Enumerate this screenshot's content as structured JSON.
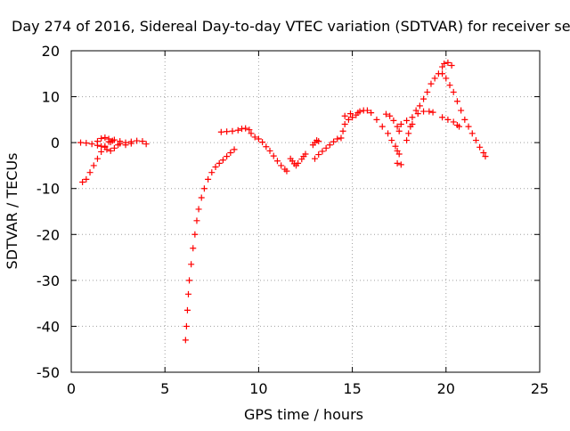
{
  "chart_data": {
    "type": "scatter",
    "title": "Day 274 of 2016, Sidereal Day-to-day VTEC variation (SDTVAR) for receiver se",
    "xlabel": "GPS time / hours",
    "ylabel": "SDTVAR / TECUs",
    "xlim": [
      0,
      25
    ],
    "ylim": [
      -50,
      20
    ],
    "xticks": [
      0,
      5,
      10,
      15,
      20,
      25
    ],
    "yticks": [
      -50,
      -40,
      -30,
      -20,
      -10,
      0,
      10,
      20
    ],
    "grid": true,
    "marker": "plus",
    "color": "#ff0000",
    "series": [
      {
        "values": [
          [
            0.5,
            0.0
          ],
          [
            0.8,
            -0.1
          ],
          [
            1.1,
            -0.3
          ],
          [
            1.4,
            -0.6
          ],
          [
            1.6,
            -0.8
          ],
          [
            1.8,
            -1.0
          ],
          [
            0.6,
            -8.6
          ],
          [
            0.8,
            -8.0
          ],
          [
            1.0,
            -6.5
          ],
          [
            1.2,
            -5.0
          ],
          [
            1.4,
            -3.5
          ],
          [
            1.6,
            -2.0
          ],
          [
            1.8,
            -0.8
          ],
          [
            2.0,
            0.2
          ],
          [
            1.4,
            0.3
          ],
          [
            1.6,
            0.9
          ],
          [
            1.8,
            1.1
          ],
          [
            2.0,
            0.8
          ],
          [
            2.2,
            0.4
          ],
          [
            1.9,
            -1.5
          ],
          [
            2.1,
            -1.8
          ],
          [
            2.3,
            -1.2
          ],
          [
            2.5,
            -0.5
          ],
          [
            2.1,
            0.1
          ],
          [
            2.3,
            0.6
          ],
          [
            2.6,
            0.3
          ],
          [
            2.9,
            0.0
          ],
          [
            3.2,
            0.2
          ],
          [
            3.5,
            0.4
          ],
          [
            3.8,
            0.3
          ],
          [
            4.0,
            -0.3
          ],
          [
            2.6,
            -0.2
          ],
          [
            2.9,
            -0.5
          ],
          [
            3.2,
            -0.2
          ],
          [
            6.1,
            -43.0
          ],
          [
            6.15,
            -40.0
          ],
          [
            6.2,
            -36.5
          ],
          [
            6.25,
            -33.0
          ],
          [
            6.3,
            -30.0
          ],
          [
            6.4,
            -26.5
          ],
          [
            6.5,
            -23.0
          ],
          [
            6.6,
            -20.0
          ],
          [
            6.7,
            -17.0
          ],
          [
            6.8,
            -14.5
          ],
          [
            6.95,
            -12.0
          ],
          [
            7.1,
            -10.0
          ],
          [
            7.3,
            -8.0
          ],
          [
            7.5,
            -6.5
          ],
          [
            7.7,
            -5.3
          ],
          [
            7.9,
            -4.5
          ],
          [
            8.1,
            -3.8
          ],
          [
            8.3,
            -3.0
          ],
          [
            8.5,
            -2.2
          ],
          [
            8.7,
            -1.5
          ],
          [
            8.0,
            2.3
          ],
          [
            8.3,
            2.4
          ],
          [
            8.6,
            2.5
          ],
          [
            8.9,
            2.7
          ],
          [
            9.1,
            3.0
          ],
          [
            9.3,
            3.1
          ],
          [
            9.5,
            2.8
          ],
          [
            9.6,
            2.0
          ],
          [
            9.8,
            1.2
          ],
          [
            10.0,
            0.8
          ],
          [
            10.2,
            0.1
          ],
          [
            10.4,
            -0.9
          ],
          [
            10.6,
            -1.8
          ],
          [
            10.8,
            -2.9
          ],
          [
            11.0,
            -4.0
          ],
          [
            11.2,
            -5.0
          ],
          [
            11.4,
            -5.8
          ],
          [
            11.5,
            -6.2
          ],
          [
            11.7,
            -3.5
          ],
          [
            11.8,
            -4.0
          ],
          [
            11.9,
            -4.6
          ],
          [
            12.0,
            -5.0
          ],
          [
            12.1,
            -4.5
          ],
          [
            12.3,
            -3.6
          ],
          [
            12.4,
            -3.0
          ],
          [
            12.5,
            -2.5
          ],
          [
            13.0,
            -3.5
          ],
          [
            13.2,
            -2.6
          ],
          [
            13.4,
            -1.9
          ],
          [
            13.6,
            -1.2
          ],
          [
            13.8,
            -0.5
          ],
          [
            14.0,
            0.2
          ],
          [
            14.2,
            0.8
          ],
          [
            12.9,
            -0.5
          ],
          [
            13.0,
            0.0
          ],
          [
            13.1,
            0.5
          ],
          [
            13.2,
            0.3
          ],
          [
            14.4,
            1.0
          ],
          [
            14.5,
            2.5
          ],
          [
            14.6,
            4.0
          ],
          [
            14.8,
            5.0
          ],
          [
            15.0,
            5.5
          ],
          [
            15.2,
            6.0
          ],
          [
            15.4,
            6.8
          ],
          [
            15.6,
            7.0
          ],
          [
            14.6,
            5.8
          ],
          [
            14.9,
            6.3
          ],
          [
            15.3,
            6.5
          ],
          [
            15.8,
            7.0
          ],
          [
            16.0,
            6.5
          ],
          [
            16.3,
            5.0
          ],
          [
            16.6,
            3.5
          ],
          [
            16.9,
            2.0
          ],
          [
            17.1,
            0.5
          ],
          [
            17.3,
            -0.8
          ],
          [
            17.4,
            -1.8
          ],
          [
            17.5,
            -2.5
          ],
          [
            17.4,
            -4.5
          ],
          [
            17.6,
            -4.8
          ],
          [
            16.8,
            6.2
          ],
          [
            17.0,
            5.8
          ],
          [
            17.2,
            4.8
          ],
          [
            17.4,
            3.5
          ],
          [
            17.5,
            2.5
          ],
          [
            17.6,
            4.0
          ],
          [
            17.9,
            4.8
          ],
          [
            18.2,
            5.5
          ],
          [
            18.5,
            6.3
          ],
          [
            18.8,
            6.8
          ],
          [
            19.1,
            6.8
          ],
          [
            19.3,
            6.6
          ],
          [
            17.9,
            0.5
          ],
          [
            18.0,
            2.0
          ],
          [
            18.1,
            3.5
          ],
          [
            18.2,
            4.0
          ],
          [
            18.4,
            7.0
          ],
          [
            18.6,
            8.0
          ],
          [
            18.8,
            9.5
          ],
          [
            19.0,
            11.0
          ],
          [
            19.2,
            12.8
          ],
          [
            19.4,
            14.0
          ],
          [
            19.6,
            15.0
          ],
          [
            19.8,
            16.5
          ],
          [
            19.9,
            17.2
          ],
          [
            20.1,
            17.4
          ],
          [
            20.3,
            16.8
          ],
          [
            19.8,
            15.0
          ],
          [
            20.0,
            14.0
          ],
          [
            20.2,
            12.5
          ],
          [
            20.4,
            11.0
          ],
          [
            20.6,
            9.0
          ],
          [
            20.8,
            7.0
          ],
          [
            21.0,
            5.0
          ],
          [
            21.2,
            3.5
          ],
          [
            21.4,
            2.0
          ],
          [
            21.6,
            0.5
          ],
          [
            21.8,
            -1.0
          ],
          [
            22.0,
            -2.2
          ],
          [
            22.1,
            -3.0
          ],
          [
            19.8,
            5.5
          ],
          [
            20.1,
            5.0
          ],
          [
            20.4,
            4.5
          ],
          [
            20.6,
            3.8
          ],
          [
            20.7,
            3.5
          ]
        ]
      }
    ]
  }
}
